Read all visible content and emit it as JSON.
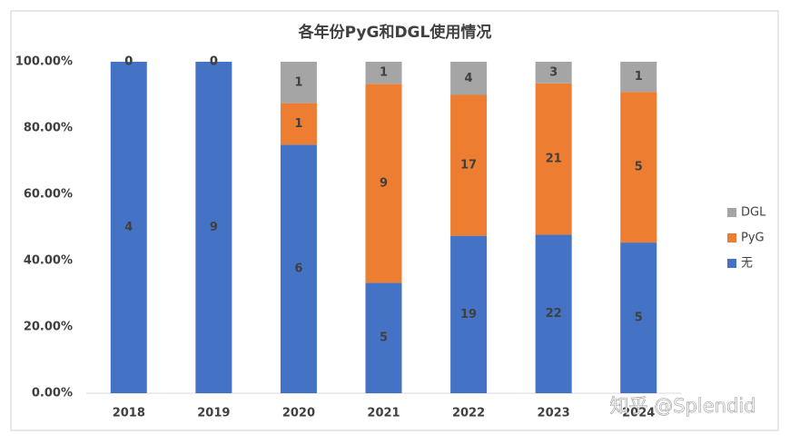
{
  "chart_data": {
    "type": "bar",
    "stacking": "percent",
    "title": "各年份PyG和DGL使用情况",
    "categories": [
      "2018",
      "2019",
      "2020",
      "2021",
      "2022",
      "2023",
      "2024"
    ],
    "series": [
      {
        "name": "无",
        "color": "#4472c4",
        "values": [
          4,
          9,
          6,
          5,
          19,
          22,
          5
        ]
      },
      {
        "name": "PyG",
        "color": "#ed7d31",
        "values": [
          0,
          0,
          1,
          9,
          17,
          21,
          5
        ]
      },
      {
        "name": "DGL",
        "color": "#a5a5a5",
        "values": [
          0,
          0,
          1,
          1,
          4,
          3,
          1
        ]
      }
    ],
    "ylim": [
      0,
      100
    ],
    "yticks": [
      {
        "value": 0,
        "label": "0.00%"
      },
      {
        "value": 20,
        "label": "20.00%"
      },
      {
        "value": 40,
        "label": "40.00%"
      },
      {
        "value": 60,
        "label": "60.00%"
      },
      {
        "value": 80,
        "label": "80.00%"
      },
      {
        "value": 100,
        "label": "100.00%"
      }
    ],
    "grid": false,
    "legend": "right",
    "watermark": "知乎 @Splendid"
  }
}
